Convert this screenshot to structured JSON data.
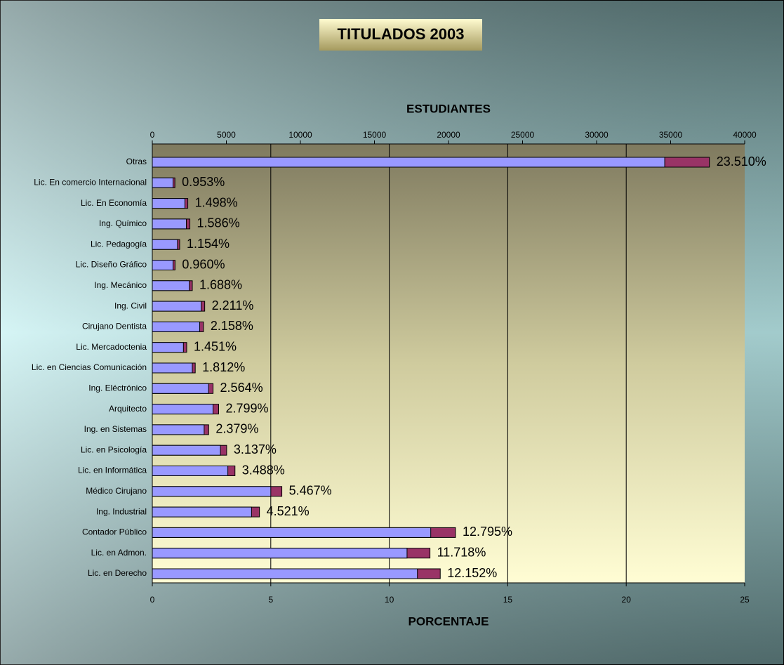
{
  "chart_data": {
    "type": "bar",
    "orientation": "horizontal",
    "title": "TITULADOS 2003",
    "categories": [
      "Otras",
      "Lic. En comercio Internacional",
      "Lic. En Economía",
      "Ing. Químico",
      "Lic. Pedagogía",
      "Lic. Diseño Gráfico",
      "Ing. Mecánico",
      "Ing. Civil",
      "Cirujano Dentista",
      "Lic. Mercadoctenia",
      "Lic. en Ciencias Comunicación",
      "Ing. Eléctrónico",
      "Arquitecto",
      "Ing. en Sistemas",
      "Lic. en Psicología",
      "Lic. en Informática",
      "Médico Cirujano",
      "Ing. Industrial",
      "Contador Público",
      "Lic. en Admon.",
      "Lic. en Derecho"
    ],
    "series": [
      {
        "name": "ESTUDIANTES",
        "color": "#9999ff",
        "axis": "x2",
        "values": [
          34600,
          1400,
          2200,
          2300,
          1700,
          1400,
          2500,
          3300,
          3200,
          2100,
          2700,
          3800,
          4100,
          3500,
          4600,
          5100,
          8000,
          6700,
          18800,
          17200,
          17900
        ]
      },
      {
        "name": "PORCENTAJE",
        "color": "#993366",
        "values": [
          23.51,
          0.953,
          1.498,
          1.586,
          1.154,
          0.96,
          1.688,
          2.211,
          2.158,
          1.451,
          1.812,
          2.564,
          2.799,
          2.379,
          3.137,
          3.488,
          5.467,
          4.521,
          12.795,
          11.718,
          12.152
        ],
        "value_labels": [
          "23.510%",
          "0.953%",
          "1.498%",
          "1.586%",
          "1.154%",
          "0.960%",
          "1.688%",
          "2.211%",
          "2.158%",
          "1.451%",
          "1.812%",
          "2.564%",
          "2.799%",
          "2.379%",
          "3.137%",
          "3.488%",
          "5.467%",
          "4.521%",
          "12.795%",
          "11.718%",
          "12.152%"
        ]
      }
    ],
    "xlim": [
      0,
      25
    ],
    "xticks": [
      0,
      5,
      10,
      15,
      20,
      25
    ],
    "x2lim": [
      0,
      40000
    ],
    "x2ticks": [
      0,
      5000,
      10000,
      15000,
      20000,
      25000,
      30000,
      35000,
      40000
    ],
    "grid": true
  }
}
